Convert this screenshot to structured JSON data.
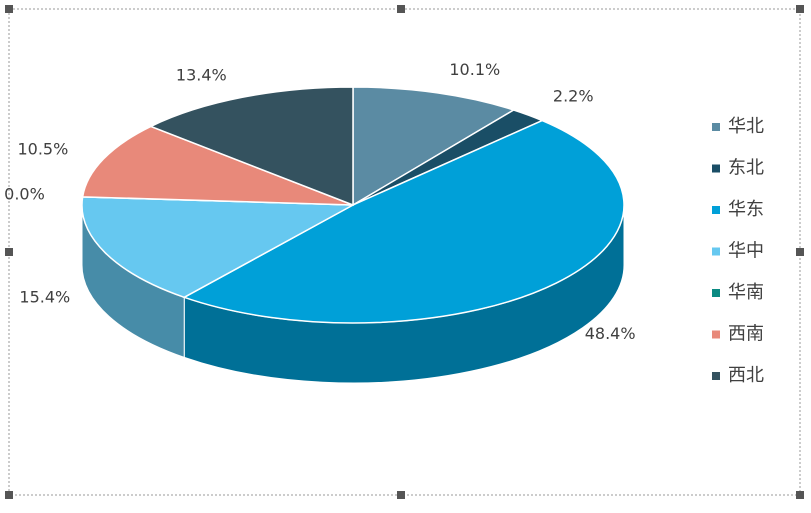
{
  "chart_data": {
    "type": "pie",
    "categories": [
      "华北",
      "东北",
      "华东",
      "华中",
      "华南",
      "西南",
      "西北"
    ],
    "values": [
      10.1,
      2.2,
      48.4,
      15.4,
      0.0,
      10.5,
      13.4
    ],
    "value_labels": [
      "10.1%",
      "2.2%",
      "48.4%",
      "15.4%",
      "0.0%",
      "10.5%",
      "13.4%"
    ],
    "colors": [
      "#5b8ba3",
      "#1a4e66",
      "#00a0d8",
      "#66c8f0",
      "#0b8a82",
      "#e8897a",
      "#34525f"
    ],
    "legend": "right"
  }
}
